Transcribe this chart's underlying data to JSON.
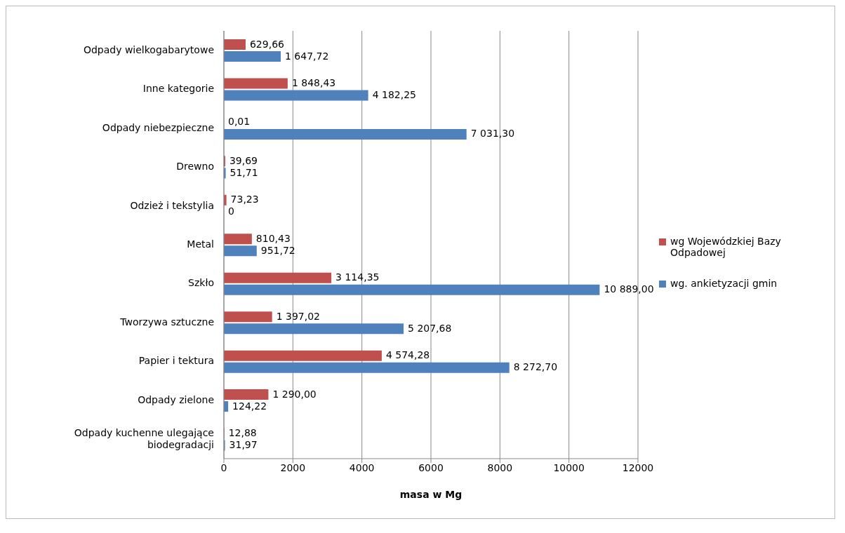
{
  "chart_data": {
    "type": "bar",
    "orientation": "horizontal",
    "xlabel": "masa w Mg",
    "categories": [
      "Odpady wielkogabarytowe",
      "Inne kategorie",
      "Odpady niebezpieczne",
      "Drewno",
      "Odzież i tekstylia",
      "Metal",
      "Szkło",
      "Tworzywa sztuczne",
      "Papier i tektura",
      "Odpady zielone",
      "Odpady kuchenne ulegające biodegradacji"
    ],
    "series": [
      {
        "name": "wg Wojewódzkiej Bazy Odpadowej",
        "color": "#c0504d",
        "values": [
          629.66,
          1848.43,
          0.01,
          39.69,
          73.23,
          810.43,
          3114.35,
          1397.02,
          4574.28,
          1290.0,
          12.88
        ],
        "value_labels": [
          "629,66",
          "1 848,43",
          "0,01",
          "39,69",
          "73,23",
          "810,43",
          "3 114,35",
          "1 397,02",
          "4 574,28",
          "1 290,00",
          "12,88"
        ]
      },
      {
        "name": "wg. ankietyzacji gmin",
        "color": "#4f81bd",
        "values": [
          1647.72,
          4182.25,
          7031.3,
          51.71,
          0,
          951.72,
          10889.0,
          5207.68,
          8272.7,
          124.22,
          31.97
        ],
        "value_labels": [
          "1 647,72",
          "4 182,25",
          "7 031,30",
          "51,71",
          "0",
          "951,72",
          "10 889,00",
          "5 207,68",
          "8 272,70",
          "124,22",
          "31,97"
        ]
      }
    ],
    "xlim": [
      0,
      12000
    ],
    "xticks": [
      0,
      2000,
      4000,
      6000,
      8000,
      10000,
      12000
    ],
    "grid": "x",
    "legend": "right"
  }
}
